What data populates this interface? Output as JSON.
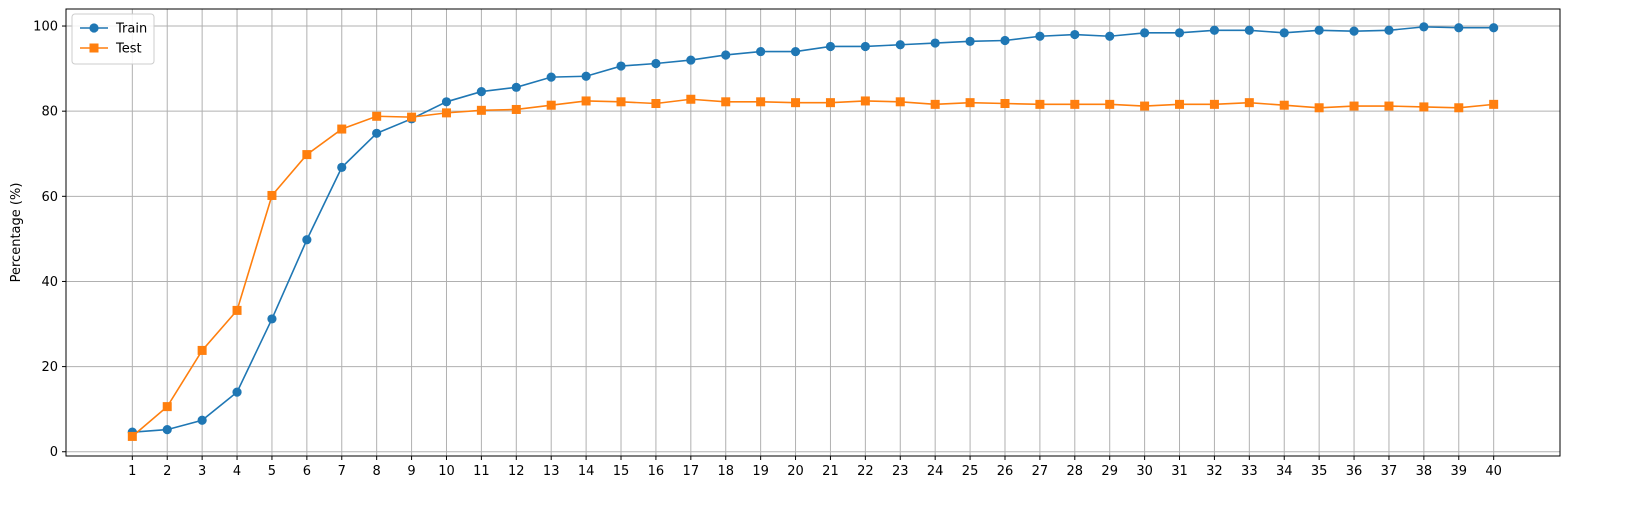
{
  "chart_data": {
    "type": "line",
    "title": "",
    "xlabel": "",
    "ylabel": "Percentage (%)",
    "x": [
      1,
      2,
      3,
      4,
      5,
      6,
      7,
      8,
      9,
      10,
      11,
      12,
      13,
      14,
      15,
      16,
      17,
      18,
      19,
      20,
      21,
      22,
      23,
      24,
      25,
      26,
      27,
      28,
      29,
      30,
      31,
      32,
      33,
      34,
      35,
      36,
      37,
      38,
      39,
      40
    ],
    "xlim": [
      -0.9,
      41.9
    ],
    "ylim": [
      -1,
      104
    ],
    "yticks": [
      0,
      20,
      40,
      60,
      80,
      100
    ],
    "grid": true,
    "legend_position": "top-left",
    "series": [
      {
        "name": "Train",
        "color": "#1f77b4",
        "marker": "circle",
        "values": [
          4.6,
          5.2,
          7.4,
          14.0,
          31.2,
          49.8,
          66.8,
          74.8,
          78.2,
          82.2,
          84.6,
          85.6,
          88.0,
          88.2,
          90.6,
          91.2,
          92.0,
          93.2,
          94.0,
          94.0,
          95.2,
          95.2,
          95.6,
          96.0,
          96.4,
          96.6,
          97.6,
          98.0,
          97.6,
          98.4,
          98.4,
          99.0,
          99.0,
          98.4,
          99.0,
          98.8,
          99.0,
          99.8,
          99.6,
          99.6
        ]
      },
      {
        "name": "Test",
        "color": "#ff7f0e",
        "marker": "square",
        "values": [
          3.6,
          10.6,
          23.8,
          33.2,
          60.2,
          69.8,
          75.8,
          78.8,
          78.6,
          79.6,
          80.2,
          80.4,
          81.4,
          82.4,
          82.2,
          81.8,
          82.8,
          82.2,
          82.2,
          82.0,
          82.0,
          82.4,
          82.2,
          81.6,
          82.0,
          81.8,
          81.6,
          81.6,
          81.6,
          81.2,
          81.6,
          81.6,
          82.0,
          81.4,
          80.8,
          81.2,
          81.2,
          81.0,
          80.8,
          81.6
        ]
      }
    ]
  }
}
